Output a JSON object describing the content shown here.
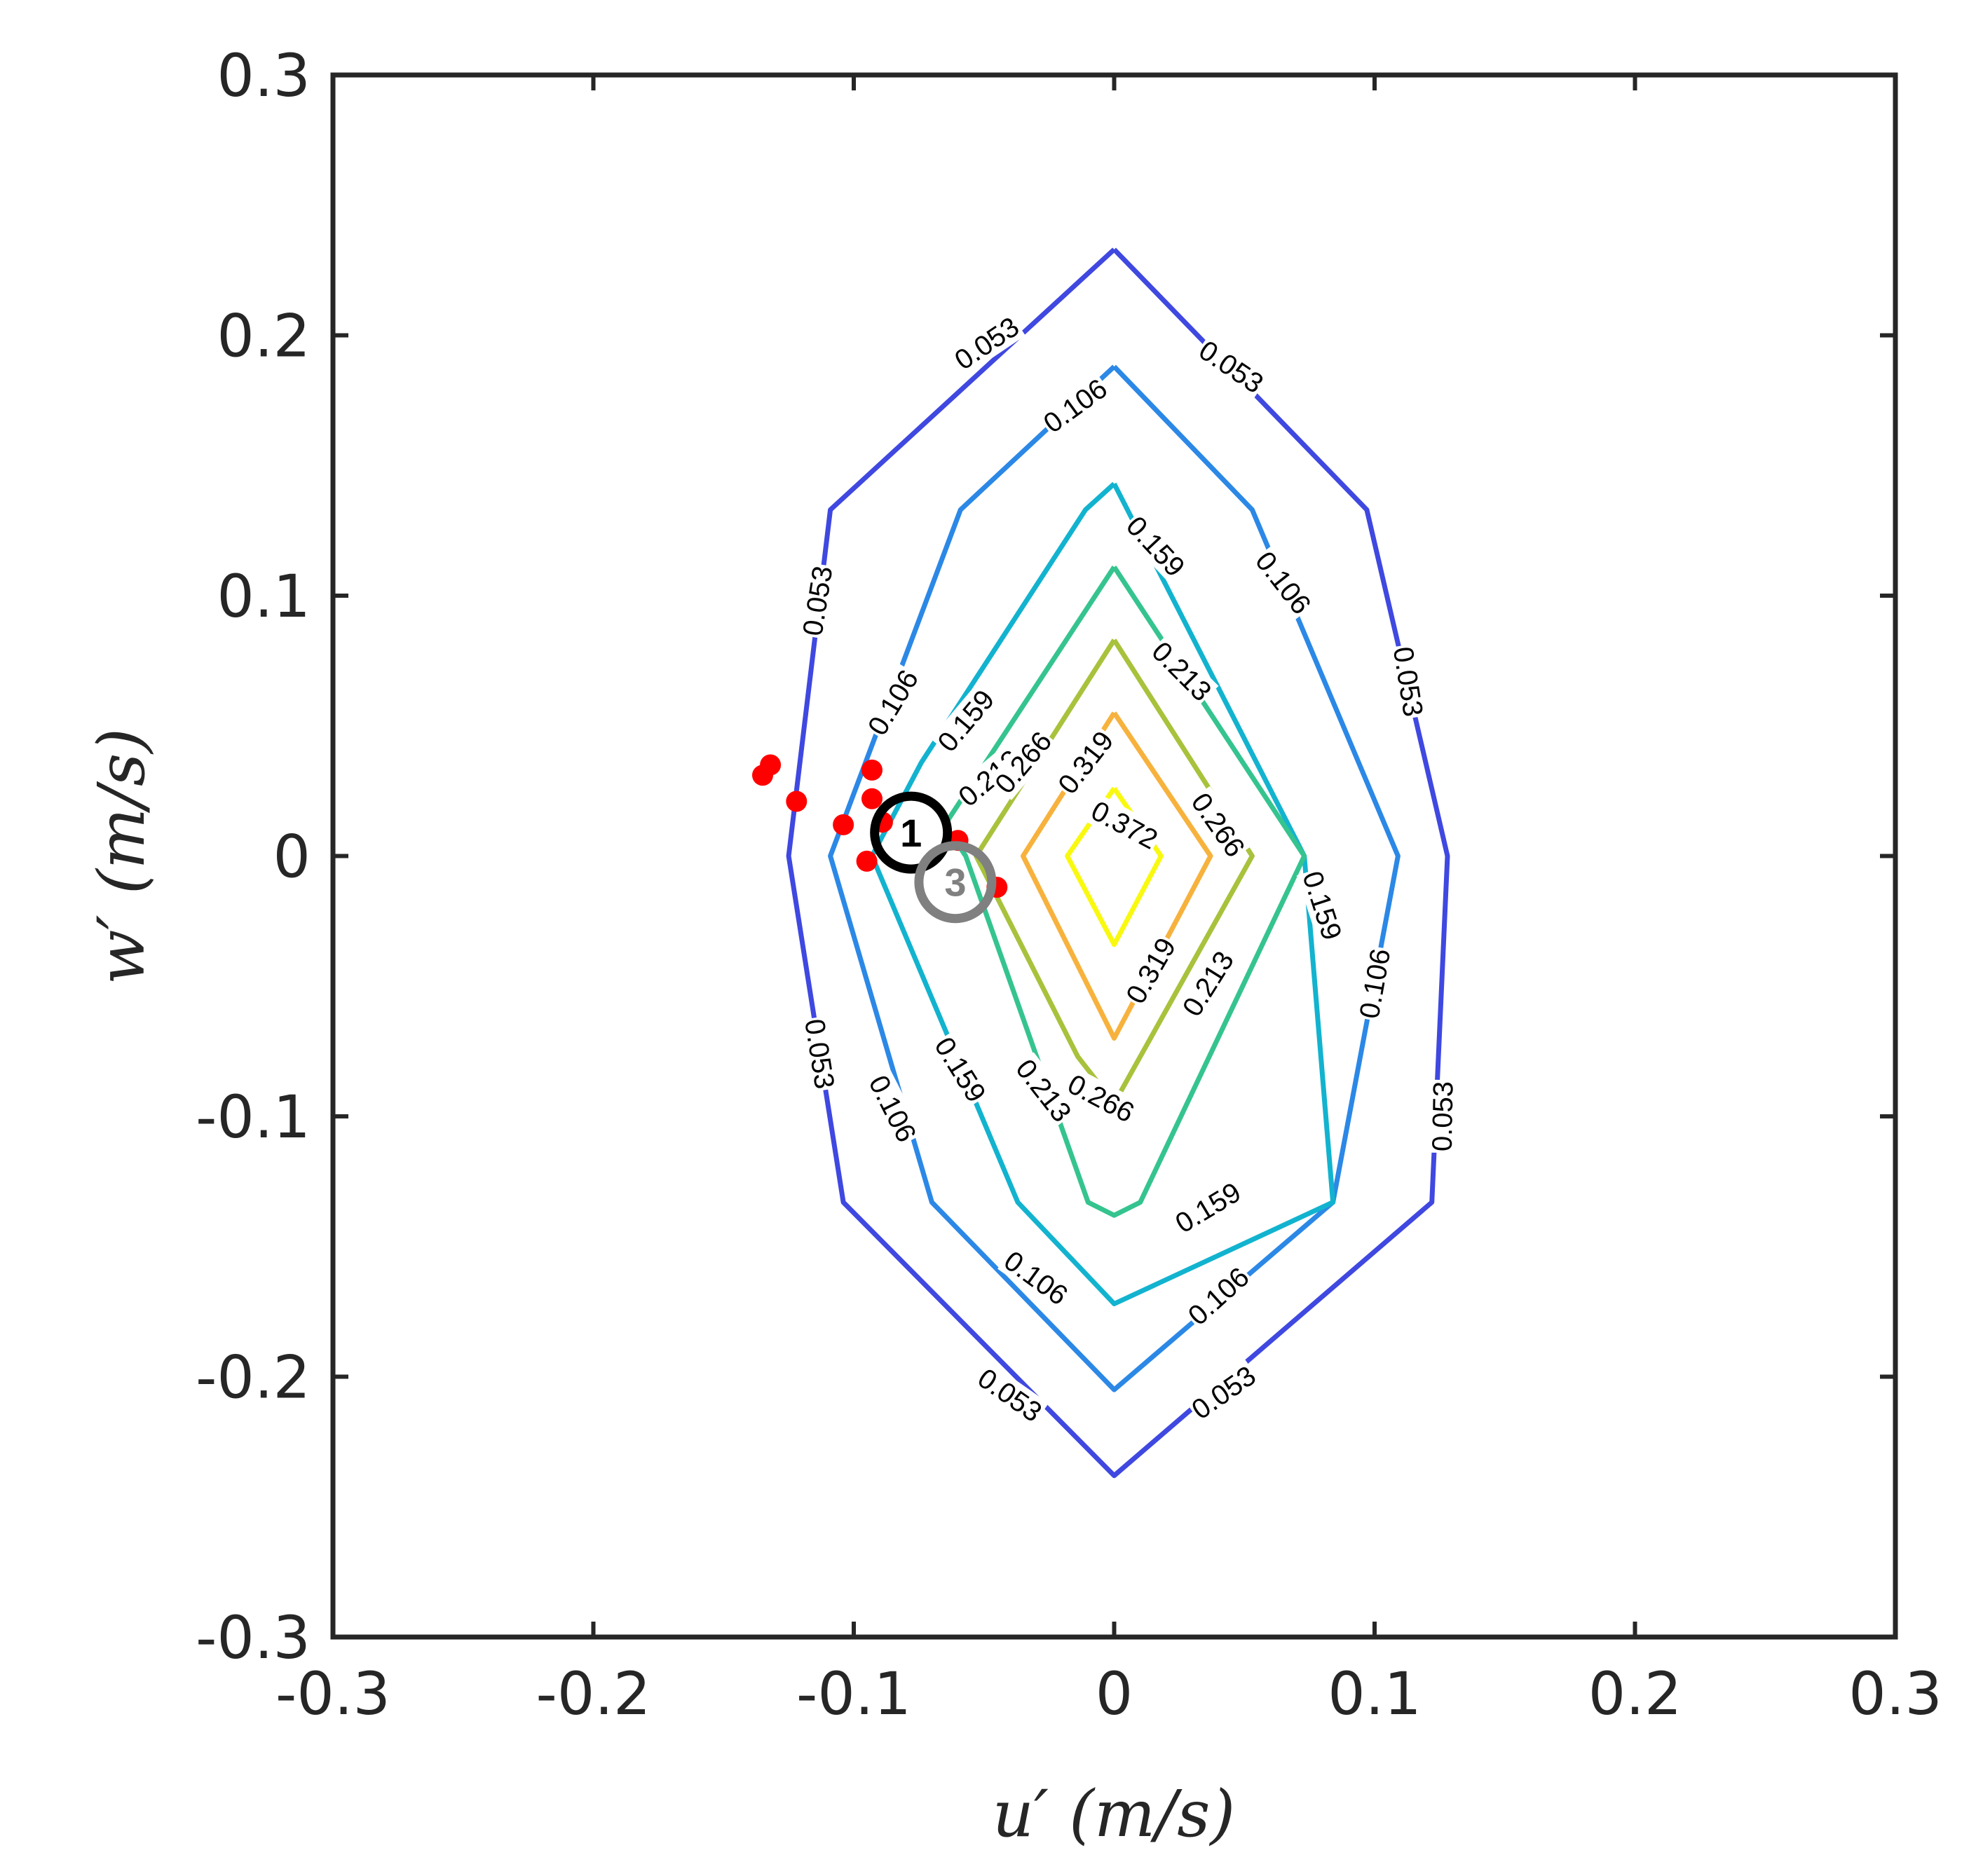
{
  "chart_data": {
    "type": "contour",
    "xlabel": "u′ (m/s)",
    "ylabel": "w′ (m/s)",
    "xlim": [
      -0.3,
      0.3
    ],
    "ylim": [
      -0.3,
      0.3
    ],
    "xticks": [
      "-0.3",
      "-0.2",
      "-0.1",
      "0",
      "0.1",
      "0.2",
      "0.3"
    ],
    "yticks": [
      "-0.3",
      "-0.2",
      "-0.1",
      "0",
      "0.1",
      "0.2",
      "0.3"
    ],
    "grid": false,
    "contours": [
      {
        "level": "0.053",
        "color": "#3f48e0",
        "points": [
          [
            0,
            0.233
          ],
          [
            -0.109,
            0.133
          ],
          [
            -0.125,
            0
          ],
          [
            -0.104,
            -0.133
          ],
          [
            0,
            -0.238
          ],
          [
            0.122,
            -0.133
          ],
          [
            0.128,
            0
          ],
          [
            0.097,
            0.133
          ],
          [
            0,
            0.233
          ]
        ]
      },
      {
        "level": "0.106",
        "color": "#2b88e6",
        "points": [
          [
            0,
            0.188
          ],
          [
            -0.059,
            0.133
          ],
          [
            -0.109,
            0
          ],
          [
            -0.07,
            -0.133
          ],
          [
            0,
            -0.205
          ],
          [
            0.084,
            -0.133
          ],
          [
            0.109,
            0
          ],
          [
            0.053,
            0.133
          ],
          [
            0,
            0.188
          ]
        ]
      },
      {
        "level": "0.159",
        "color": "#12b3cf",
        "points": [
          [
            0,
            0.143
          ],
          [
            -0.011,
            0.133
          ],
          [
            -0.074,
            0.036
          ],
          [
            -0.093,
            0
          ],
          [
            -0.037,
            -0.133
          ],
          [
            0,
            -0.172
          ],
          [
            0.084,
            -0.133
          ],
          [
            0.073,
            0
          ],
          [
            0,
            0.143
          ]
        ]
      },
      {
        "level": "0.213",
        "color": "#35c48f",
        "points": [
          [
            0,
            0.111
          ],
          [
            -0.065,
            0.012
          ],
          [
            -0.057,
            0
          ],
          [
            -0.01,
            -0.133
          ],
          [
            0,
            -0.138
          ],
          [
            0.01,
            -0.133
          ],
          [
            0.073,
            0
          ],
          [
            0,
            0.111
          ]
        ]
      },
      {
        "level": "0.266",
        "color": "#a8c23c",
        "points": [
          [
            0,
            0.083
          ],
          [
            -0.053,
            0
          ],
          [
            -0.014,
            -0.077
          ],
          [
            0,
            -0.095
          ],
          [
            0.053,
            0
          ],
          [
            0,
            0.083
          ]
        ]
      },
      {
        "level": "0.319",
        "color": "#f7b23d",
        "points": [
          [
            0,
            0.055
          ],
          [
            -0.035,
            0
          ],
          [
            0,
            -0.07
          ],
          [
            0.037,
            0
          ],
          [
            0,
            0.055
          ]
        ]
      },
      {
        "level": "0.372",
        "color": "#f9f910",
        "points": [
          [
            0,
            0.026
          ],
          [
            -0.018,
            0
          ],
          [
            0,
            -0.034
          ],
          [
            0.018,
            0
          ],
          [
            0,
            0.026
          ]
        ]
      }
    ],
    "contour_labels": [
      {
        "text": "0.053",
        "x": -0.049,
        "y": 0.197,
        "angle": -34
      },
      {
        "text": "0.053",
        "x": 0.045,
        "y": 0.188,
        "angle": 34
      },
      {
        "text": "0.053",
        "x": -0.114,
        "y": 0.098,
        "angle": -81
      },
      {
        "text": "0.053",
        "x": 0.113,
        "y": 0.067,
        "angle": 81
      },
      {
        "text": "0.053",
        "x": -0.113,
        "y": -0.076,
        "angle": 81
      },
      {
        "text": "0.053",
        "x": 0.126,
        "y": -0.1,
        "angle": -89
      },
      {
        "text": "0.053",
        "x": -0.04,
        "y": -0.207,
        "angle": 35
      },
      {
        "text": "0.053",
        "x": 0.042,
        "y": -0.206,
        "angle": -35
      },
      {
        "text": "0.106",
        "x": -0.015,
        "y": 0.173,
        "angle": -36
      },
      {
        "text": "0.106",
        "x": 0.065,
        "y": 0.105,
        "angle": 52
      },
      {
        "text": "0.106",
        "x": -0.085,
        "y": 0.059,
        "angle": -59
      },
      {
        "text": "0.106",
        "x": 0.1,
        "y": -0.049,
        "angle": -80
      },
      {
        "text": "0.106",
        "x": -0.085,
        "y": -0.097,
        "angle": 63
      },
      {
        "text": "0.106",
        "x": -0.03,
        "y": -0.162,
        "angle": 36
      },
      {
        "text": "0.106",
        "x": 0.04,
        "y": -0.169,
        "angle": -42
      },
      {
        "text": "0.159",
        "x": 0.016,
        "y": 0.119,
        "angle": 47
      },
      {
        "text": "0.159",
        "x": -0.057,
        "y": 0.052,
        "angle": -50
      },
      {
        "text": "0.159",
        "x": 0.08,
        "y": -0.019,
        "angle": 72
      },
      {
        "text": "0.159",
        "x": -0.059,
        "y": -0.082,
        "angle": 58
      },
      {
        "text": "0.159",
        "x": 0.036,
        "y": -0.135,
        "angle": -31
      },
      {
        "text": "0.213",
        "x": 0.026,
        "y": 0.071,
        "angle": 45
      },
      {
        "text": "0.213",
        "x": -0.048,
        "y": 0.03,
        "angle": -40
      },
      {
        "text": "0.213",
        "x": 0.036,
        "y": -0.049,
        "angle": -58
      },
      {
        "text": "0.213",
        "x": -0.027,
        "y": -0.09,
        "angle": 52
      },
      {
        "text": "0.266",
        "x": -0.035,
        "y": 0.036,
        "angle": -50
      },
      {
        "text": "0.266",
        "x": 0.04,
        "y": 0.012,
        "angle": 55
      },
      {
        "text": "0.266",
        "x": -0.005,
        "y": -0.093,
        "angle": 28
      },
      {
        "text": "0.319",
        "x": -0.011,
        "y": 0.036,
        "angle": -52
      },
      {
        "text": "0.319",
        "x": 0.014,
        "y": -0.044,
        "angle": -60
      },
      {
        "text": "0.372",
        "x": 0.004,
        "y": 0.012,
        "angle": 28
      }
    ],
    "scatter_points": [
      [
        -0.135,
        0.031
      ],
      [
        -0.132,
        0.035
      ],
      [
        -0.122,
        0.021
      ],
      [
        -0.104,
        0.012
      ],
      [
        -0.093,
        0.033
      ],
      [
        -0.093,
        0.022
      ],
      [
        -0.095,
        -0.002
      ],
      [
        -0.089,
        0.013
      ],
      [
        -0.06,
        0.006
      ],
      [
        -0.045,
        -0.012
      ]
    ],
    "scatter_color": "#ff0000",
    "markers": [
      {
        "label": "1",
        "x": -0.078,
        "y": 0.009,
        "color": "#000000"
      },
      {
        "label": "3",
        "x": -0.061,
        "y": -0.01,
        "color": "#808080"
      }
    ]
  }
}
